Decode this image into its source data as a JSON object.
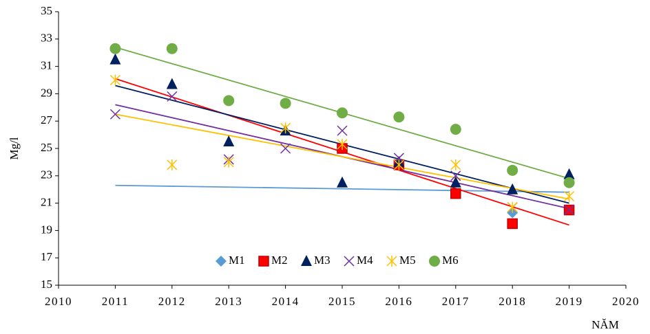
{
  "chart_data": {
    "type": "scatter",
    "x_label": "NĂM",
    "y_label": "Mg/l",
    "xlim": [
      2010,
      2020
    ],
    "xticks": [
      2010,
      2011,
      2012,
      2013,
      2014,
      2015,
      2016,
      2017,
      2018,
      2019,
      2020
    ],
    "ylim": [
      15,
      35
    ],
    "yticks": [
      15,
      17,
      19,
      21,
      23,
      25,
      27,
      29,
      31,
      33,
      35
    ],
    "legend": "bottom",
    "series": [
      {
        "name": "M1",
        "color": "#5b9bd5",
        "marker": "diamond",
        "x": [
          2015,
          2016,
          2017,
          2018,
          2019
        ],
        "values": [
          25,
          23.8,
          21.7,
          20.3,
          20.5
        ],
        "trendline": {
          "x": [
            2011,
            2019
          ],
          "y": [
            22.3,
            21.8
          ]
        }
      },
      {
        "name": "M2",
        "color": "#ff0000",
        "marker": "square",
        "x": [
          2015,
          2016,
          2017,
          2018,
          2019
        ],
        "values": [
          25,
          23.8,
          21.7,
          19.5,
          20.5
        ],
        "trendline": {
          "x": [
            2011,
            2019
          ],
          "y": [
            30.1,
            19.4
          ]
        }
      },
      {
        "name": "M3",
        "color": "#002060",
        "marker": "triangle",
        "x": [
          2011,
          2012,
          2013,
          2014,
          2015,
          2016,
          2017,
          2018,
          2019
        ],
        "values": [
          31.5,
          29.7,
          25.5,
          26.3,
          22.5,
          24.0,
          22.5,
          22.0,
          23.1
        ],
        "trendline": {
          "x": [
            2011,
            2019
          ],
          "y": [
            29.6,
            21.0
          ]
        }
      },
      {
        "name": "M4",
        "color": "#7030a0",
        "marker": "x",
        "x": [
          2011,
          2012,
          2013,
          2014,
          2015,
          2016,
          2017,
          2018,
          2019
        ],
        "values": [
          27.5,
          28.8,
          24.2,
          25.0,
          26.3,
          24.3,
          23.0,
          20.7,
          20.5
        ],
        "trendline": {
          "x": [
            2011,
            2019
          ],
          "y": [
            28.2,
            20.6
          ]
        }
      },
      {
        "name": "M5",
        "color": "#ffc000",
        "marker": "star",
        "x": [
          2011,
          2012,
          2013,
          2014,
          2015,
          2016,
          2017,
          2018,
          2019
        ],
        "values": [
          30.0,
          23.8,
          24.0,
          26.5,
          25.3,
          23.8,
          23.8,
          20.7,
          21.5
        ],
        "trendline": {
          "x": [
            2011,
            2019
          ],
          "y": [
            27.5,
            21.3
          ]
        }
      },
      {
        "name": "M6",
        "color": "#70ad47",
        "marker": "circle",
        "x": [
          2011,
          2012,
          2013,
          2014,
          2015,
          2016,
          2017,
          2018,
          2019
        ],
        "values": [
          32.3,
          32.3,
          28.5,
          28.3,
          27.6,
          27.3,
          26.4,
          23.4,
          22.5
        ],
        "trendline": {
          "x": [
            2011,
            2019
          ],
          "y": [
            32.4,
            22.8
          ]
        }
      }
    ]
  }
}
